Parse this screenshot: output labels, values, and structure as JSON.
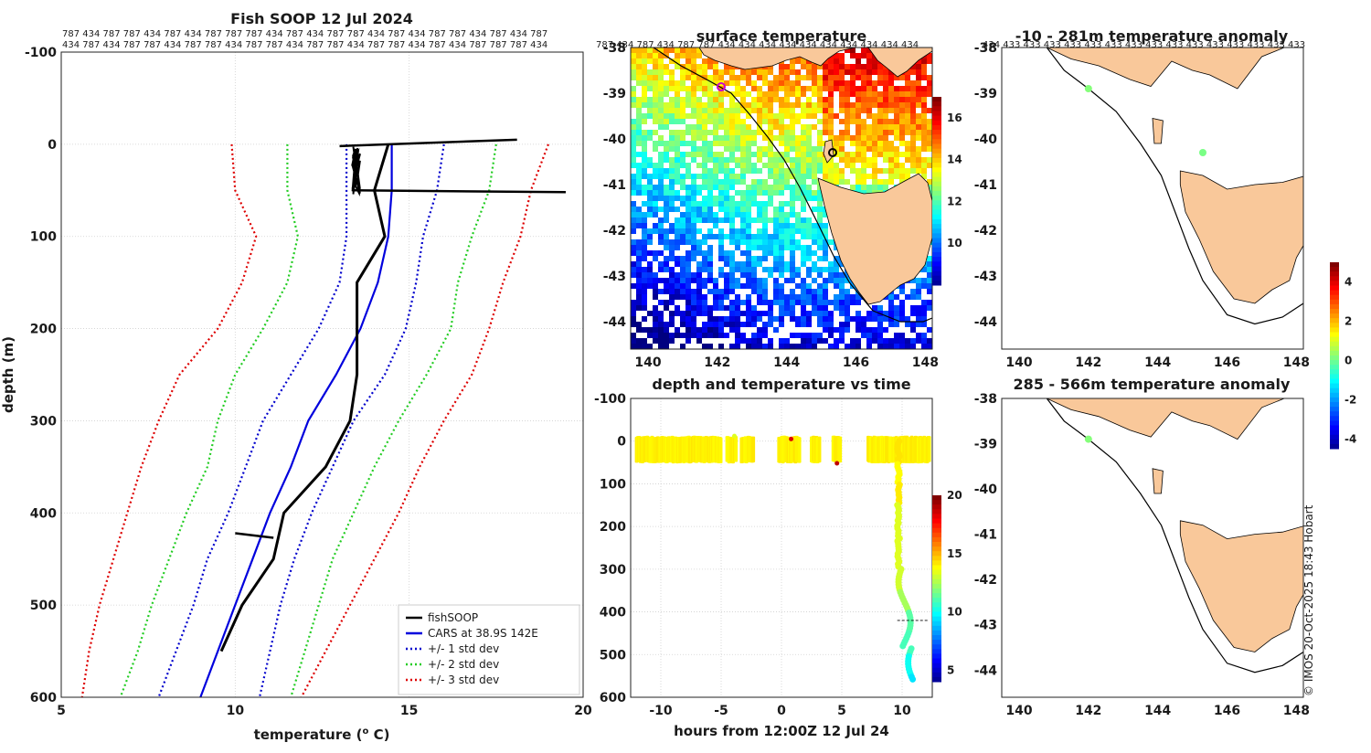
{
  "colors": {
    "fishsoop": "#000000",
    "cars": "#0000dd",
    "std1": "#0000cc",
    "std2": "#22cc22",
    "std3": "#dd0000",
    "land": "#f9c89a"
  },
  "profile": {
    "title": "Fish SOOP 12 Jul 2024",
    "xlabel_prefix": "temperature (",
    "xlabel_sup": "o",
    "xlabel_suffix": " C)",
    "ylabel": "depth (m)",
    "id_row1": "787 434 787 787 434 787 434 787 787 787 434 787 434 787 787 434 787 434 787 787 434 787 434 787",
    "id_row2": "434 787 434 787 787 434 787 787 434 787 787 434 787 787 434 787 787 434 787 434 787 787 787 434",
    "legend": [
      "fishSOOP",
      "CARS at 38.9S 142E",
      "+/- 1 std dev",
      "+/- 2 std dev",
      "+/- 3 std dev"
    ]
  },
  "sst_map": {
    "title": "surface temperature",
    "id_row": "787 434 787 434 787 787 434 434 434 434 434 434 434 434 434 434"
  },
  "anom_map_top": {
    "title": "-10 - 281m temperature anomaly",
    "id_row": "434 433 433 433 433 433 433 433 433 433 433 433 433 433 433 433"
  },
  "anom_map_bottom": {
    "title": "285 - 566m temperature anomaly"
  },
  "timeseries": {
    "title": "depth and temperature vs time",
    "xlabel": "hours from 12:00Z 12 Jul 24"
  },
  "credit": "© IMOS 20-Oct-2025 18:43 Hobart",
  "chart_data": [
    {
      "type": "line",
      "title": "Fish SOOP 12 Jul 2024",
      "xlabel": "temperature (oC)",
      "ylabel": "depth (m)",
      "xlim": [
        5,
        20
      ],
      "ylim": [
        600,
        -100
      ],
      "xticks": [
        "5",
        "10",
        "15",
        "20"
      ],
      "yticks": [
        "-100",
        "0",
        "100",
        "200",
        "300",
        "400",
        "500",
        "600"
      ],
      "depth": [
        0,
        50,
        100,
        150,
        200,
        250,
        300,
        350,
        400,
        450,
        500,
        550,
        600
      ],
      "series": [
        {
          "name": "CARS at 38.9S 142E",
          "values": [
            14.5,
            14.5,
            14.4,
            14.1,
            13.6,
            12.9,
            12.1,
            11.6,
            11.0,
            10.5,
            10.0,
            9.5,
            9.0
          ]
        },
        {
          "name": "+1 std dev",
          "values": [
            16.0,
            15.8,
            15.4,
            15.2,
            14.9,
            14.3,
            13.4,
            12.8,
            12.2,
            11.7,
            11.3,
            11.0,
            10.7
          ]
        },
        {
          "name": "-1 std dev",
          "values": [
            13.2,
            13.2,
            13.2,
            13.0,
            12.4,
            11.6,
            10.8,
            10.3,
            9.8,
            9.2,
            8.8,
            8.3,
            7.8
          ]
        },
        {
          "name": "+2 std dev",
          "values": [
            17.5,
            17.3,
            16.8,
            16.4,
            16.2,
            15.5,
            14.7,
            14.0,
            13.4,
            12.8,
            12.4,
            12.0,
            11.6
          ]
        },
        {
          "name": "-2 std dev",
          "values": [
            11.5,
            11.5,
            11.8,
            11.5,
            10.8,
            10.0,
            9.5,
            9.2,
            8.6,
            8.1,
            7.6,
            7.2,
            6.7
          ]
        },
        {
          "name": "+3 std dev",
          "values": [
            19.0,
            18.5,
            18.2,
            17.7,
            17.3,
            16.8,
            16.0,
            15.3,
            14.7,
            14.0,
            13.3,
            12.6,
            11.9
          ]
        },
        {
          "name": "-3 std dev",
          "values": [
            9.9,
            10.0,
            10.6,
            10.2,
            9.5,
            8.4,
            7.8,
            7.3,
            6.9,
            6.5,
            6.1,
            5.8,
            5.6
          ]
        },
        {
          "name": "fishSOOP",
          "values": [
            14.4,
            14.0,
            14.3,
            13.5,
            13.5,
            13.5,
            13.3,
            12.6,
            11.4,
            11.1,
            10.2,
            9.6,
            null
          ]
        }
      ]
    },
    {
      "type": "heatmap",
      "title": "surface temperature",
      "xlim": [
        139.5,
        148.2
      ],
      "ylim": [
        -44.5,
        -38
      ],
      "xticks": [
        "140",
        "142",
        "144",
        "146",
        "148"
      ],
      "yticks": [
        "-38",
        "-39",
        "-40",
        "-41",
        "-42",
        "-43",
        "-44"
      ],
      "colorbar_ticks": [
        "10",
        "12",
        "14",
        "16"
      ],
      "colorbar_range": [
        8,
        17
      ]
    },
    {
      "type": "scatter",
      "title": "depth and temperature vs time",
      "xlabel": "hours from 12:00Z 12 Jul 24",
      "xlim": [
        -12.5,
        12.5
      ],
      "ylim": [
        600,
        -100
      ],
      "xticks": [
        "-10",
        "-5",
        "0",
        "5",
        "10"
      ],
      "yticks": [
        "-100",
        "0",
        "100",
        "200",
        "300",
        "400",
        "500",
        "600"
      ],
      "colorbar_ticks": [
        "5",
        "10",
        "15",
        "20"
      ],
      "colorbar_range": [
        4,
        20
      ]
    },
    {
      "type": "scatter",
      "title": "-10 - 281m temperature anomaly",
      "xticks": [
        "140",
        "142",
        "144",
        "146",
        "148"
      ],
      "yticks": [
        "-38",
        "-39",
        "-40",
        "-41",
        "-42",
        "-43",
        "-44"
      ],
      "points": [
        {
          "lon": 142.0,
          "lat": -38.9,
          "anomaly": 0.3
        },
        {
          "lon": 145.3,
          "lat": -40.3,
          "anomaly": 0.2
        }
      ]
    },
    {
      "type": "scatter",
      "title": "285 - 566m temperature anomaly",
      "xticks": [
        "140",
        "142",
        "144",
        "146",
        "148"
      ],
      "yticks": [
        "-38",
        "-39",
        "-40",
        "-41",
        "-42",
        "-43",
        "-44"
      ],
      "colorbar_ticks": [
        "4",
        "2",
        "0",
        "-2",
        "-4"
      ],
      "colorbar_range": [
        -4.5,
        5
      ],
      "points": [
        {
          "lon": 142.0,
          "lat": -38.9,
          "anomaly": 0.3
        }
      ]
    }
  ]
}
